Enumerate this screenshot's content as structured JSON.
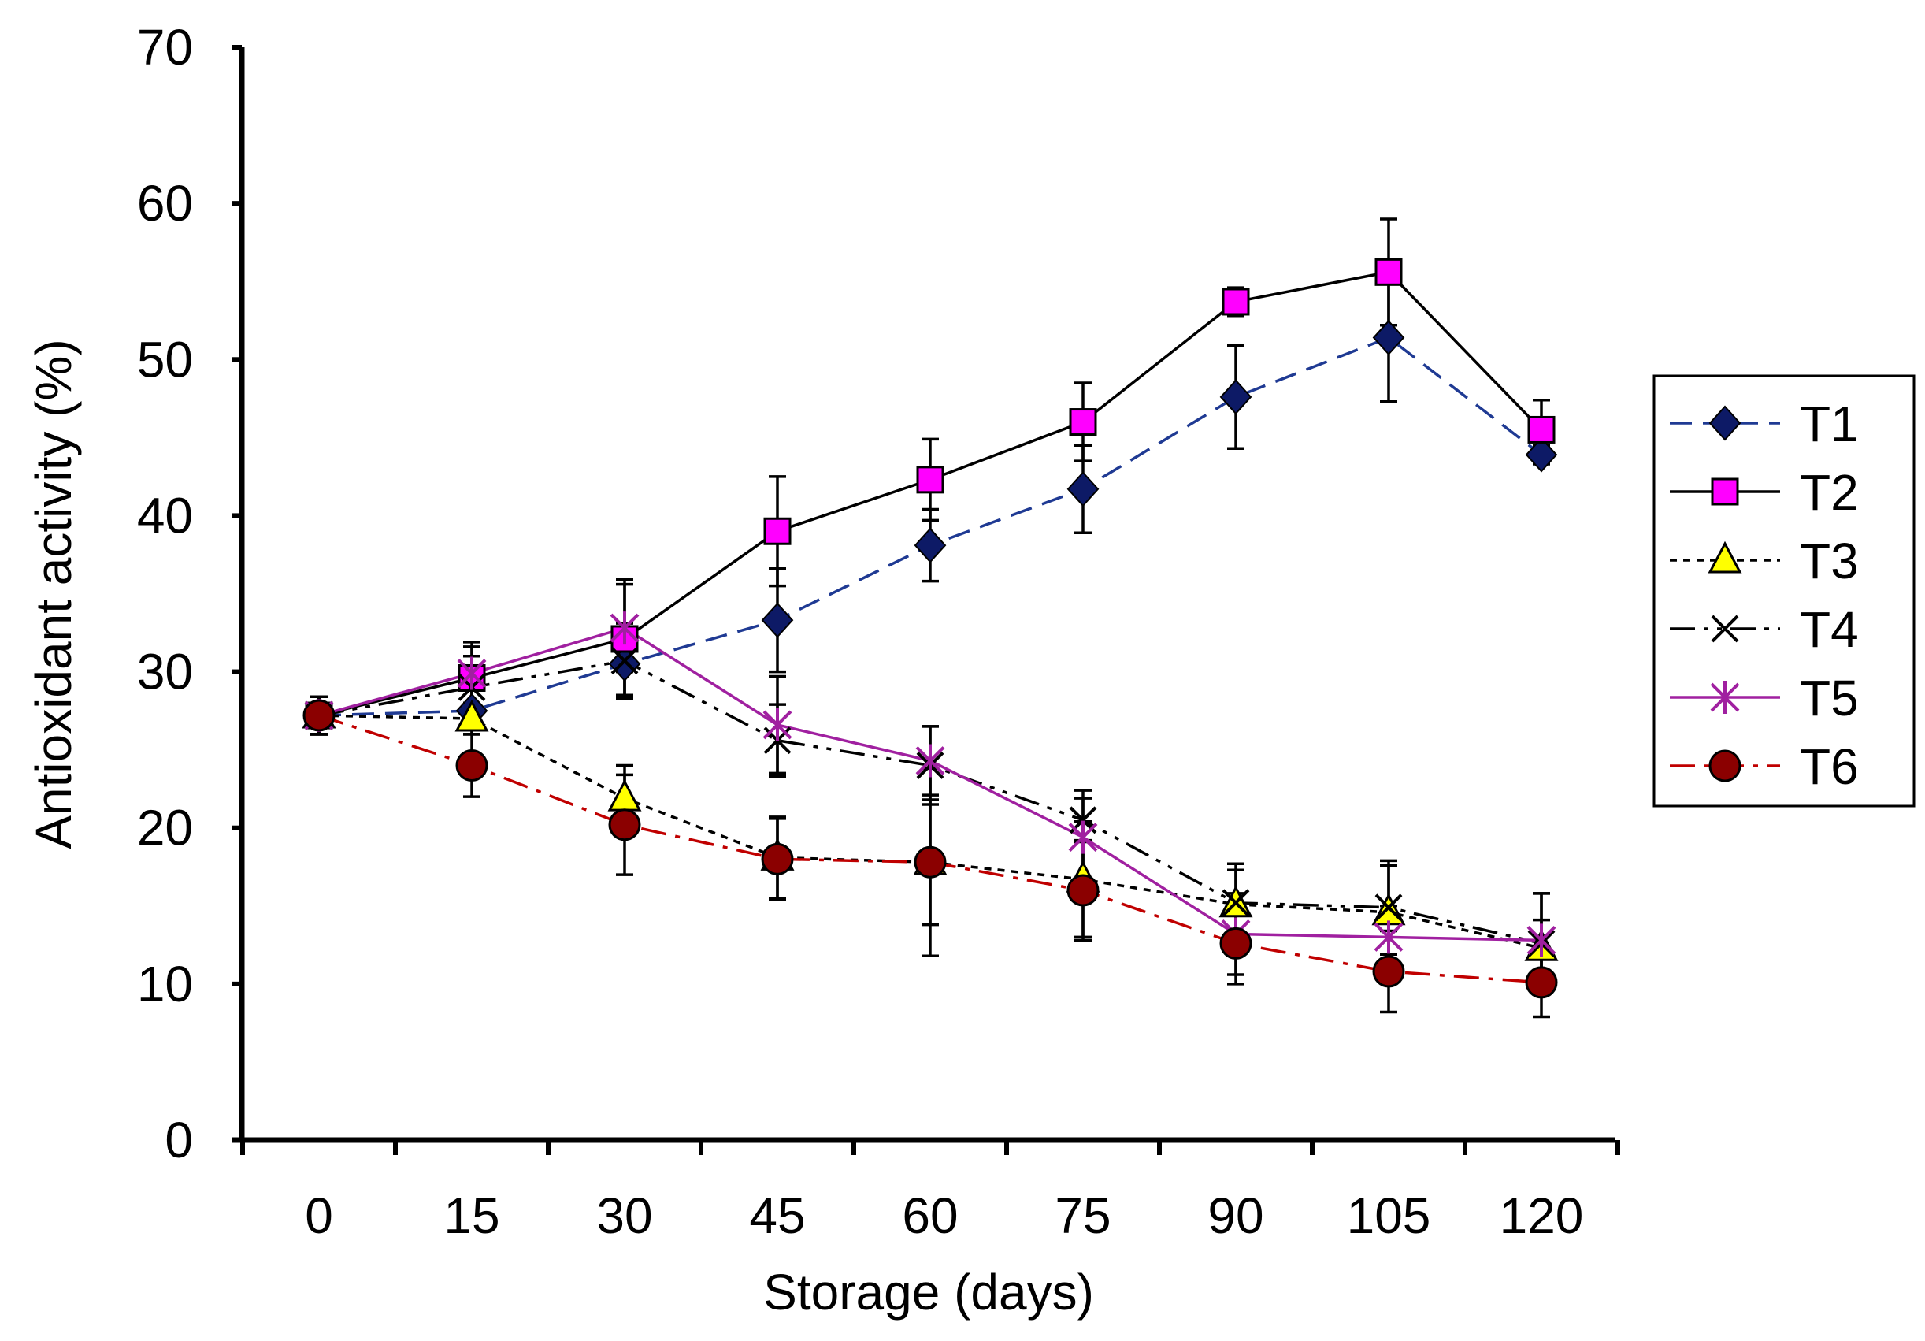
{
  "chart_data": {
    "type": "line",
    "title": "",
    "xlabel": "Storage (days)",
    "ylabel": "Antioxidant activity (%)",
    "x": [
      0,
      15,
      30,
      45,
      60,
      75,
      90,
      105,
      120
    ],
    "x_tick_labels": [
      "0",
      "15",
      "30",
      "45",
      "60",
      "75",
      "90",
      "105",
      "120"
    ],
    "y_ticks": [
      0,
      10,
      20,
      30,
      40,
      50,
      60,
      70
    ],
    "y_tick_labels": [
      "0",
      "10",
      "20",
      "30",
      "40",
      "50",
      "60",
      "70"
    ],
    "ylim": [
      0,
      70
    ],
    "grid": false,
    "legend_position": "right",
    "series": [
      {
        "name": "T1",
        "color": "#1F3A93",
        "marker": "diamond",
        "marker_fill": "#0D1A66",
        "line_style": "dashed",
        "values": [
          27.2,
          27.5,
          30.5,
          33.3,
          38.1,
          41.7,
          47.6,
          51.4,
          43.9
        ],
        "errors": [
          1.2,
          1.5,
          2.0,
          3.3,
          2.3,
          2.8,
          3.3,
          4.1,
          0.6
        ]
      },
      {
        "name": "T2",
        "color": "#000000",
        "marker": "square",
        "marker_fill": "#FF00FF",
        "line_style": "solid",
        "values": [
          27.2,
          29.6,
          32.1,
          39.0,
          42.3,
          46.0,
          53.7,
          55.6,
          45.5
        ],
        "errors": [
          1.2,
          2.0,
          3.8,
          3.5,
          2.6,
          2.5,
          0.9,
          3.4,
          1.9
        ]
      },
      {
        "name": "T3",
        "color": "#000000",
        "marker": "triangle",
        "marker_fill": "#FFFF00",
        "line_style": "dotted",
        "values": [
          27.2,
          27.0,
          21.9,
          18.1,
          17.8,
          16.7,
          15.1,
          14.6,
          12.3
        ],
        "errors": [
          1.2,
          1.0,
          2.1,
          2.6,
          4.0,
          3.7,
          2.2,
          3.0,
          1.8
        ]
      },
      {
        "name": "T4",
        "color": "#000000",
        "marker": "x",
        "marker_fill": "#000000",
        "line_style": "dashdotdot",
        "values": [
          27.2,
          29.0,
          30.7,
          25.6,
          24.0,
          20.5,
          15.2,
          14.9,
          12.6
        ],
        "errors": [
          1.2,
          2.0,
          2.4,
          2.3,
          2.5,
          1.4,
          2.5,
          3.0,
          3.2
        ]
      },
      {
        "name": "T5",
        "color": "#A020A0",
        "marker": "asterisk",
        "marker_fill": "#A020A0",
        "line_style": "solid",
        "values": [
          27.2,
          29.9,
          32.8,
          26.6,
          24.3,
          19.4,
          13.2,
          13.0,
          12.8
        ],
        "errors": [
          1.2,
          2.0,
          2.8,
          3.1,
          2.2,
          3.0,
          2.6,
          2.0,
          3.0
        ]
      },
      {
        "name": "T6",
        "color": "#C00000",
        "marker": "circle",
        "marker_fill": "#8B0000",
        "line_style": "dashdot",
        "values": [
          27.2,
          24.0,
          20.2,
          18.0,
          17.8,
          16.0,
          12.6,
          10.8,
          10.1
        ],
        "errors": [
          1.2,
          2.0,
          3.2,
          2.6,
          6.0,
          3.2,
          2.6,
          2.6,
          2.2
        ]
      }
    ]
  }
}
